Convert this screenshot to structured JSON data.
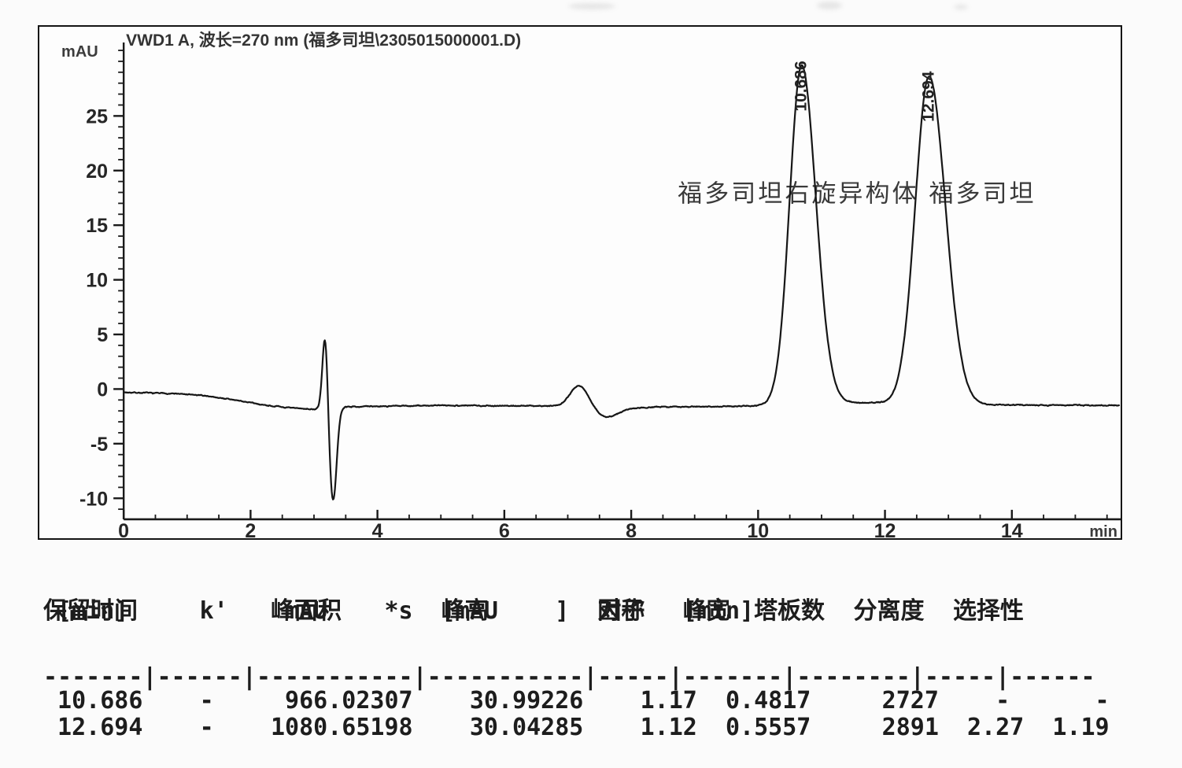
{
  "chart": {
    "title": "VWD1 A, 波长=270 nm (福多司坦\\2305015000001.D)",
    "y_unit": "mAU",
    "x_unit": "min"
  },
  "chart_data": {
    "type": "line",
    "title": "VWD1 A, 波长=270 nm (福多司坦\\2305015000001.D)",
    "xlabel": "min",
    "ylabel": "mAU",
    "xlim": [
      0,
      15.7
    ],
    "ylim": [
      -12,
      32
    ],
    "xticks": [
      0,
      2,
      4,
      6,
      8,
      10,
      12,
      14
    ],
    "yticks": [
      25,
      20,
      15,
      10,
      5,
      0,
      -5,
      -10
    ],
    "grid": false,
    "legend": false,
    "line_color": "#161616",
    "annotation": "福多司坦右旋异构体 福多司坦",
    "peak_names": [
      "福多司坦右旋异构体",
      "福多司坦"
    ],
    "peaks": [
      {
        "label": "10.686",
        "rt_min": 10.686,
        "height_mau": 30.99226,
        "width_min": 0.4817,
        "symmetry": 1.17
      },
      {
        "label": "12.694",
        "rt_min": 12.694,
        "height_mau": 30.04285,
        "width_min": 0.5557,
        "symmetry": 1.12
      }
    ],
    "baseline_anchors": [
      [
        0,
        -0.3
      ],
      [
        0.8,
        -0.42
      ],
      [
        1.3,
        -0.62
      ],
      [
        1.8,
        -1.05
      ],
      [
        2.2,
        -1.45
      ],
      [
        2.6,
        -1.72
      ],
      [
        3.0,
        -1.85
      ],
      [
        3.3,
        -1.75
      ],
      [
        3.5,
        -1.62
      ],
      [
        5.0,
        -1.5
      ],
      [
        6.8,
        -1.55
      ],
      [
        7.95,
        -1.72
      ],
      [
        8.6,
        -1.62
      ],
      [
        9.6,
        -1.58
      ],
      [
        10.3,
        -1.5
      ],
      [
        11.2,
        -1.25
      ],
      [
        11.9,
        -1.25
      ],
      [
        12.3,
        -1.35
      ],
      [
        13.2,
        -1.45
      ],
      [
        14.0,
        -1.45
      ],
      [
        15.7,
        -1.5
      ]
    ],
    "artifacts": [
      {
        "name": "injection-disturbance",
        "components": [
          {
            "mu": 3.175,
            "sigma": 0.042,
            "amp": 6.9
          },
          {
            "mu": 3.3,
            "sigma": 0.056,
            "amp": -8.5
          }
        ]
      },
      {
        "name": "baseline-wave",
        "components": [
          {
            "mu": 7.18,
            "sigma": 0.14,
            "amp": 1.95
          },
          {
            "mu": 7.62,
            "sigma": 0.17,
            "amp": -0.9
          }
        ]
      }
    ]
  },
  "report": {
    "columns": [
      {
        "title": "保留时间",
        "unit": "[min]"
      },
      {
        "title": "k'",
        "unit": ""
      },
      {
        "title": "峰面积",
        "unit": "mAU    *s"
      },
      {
        "title": "峰高",
        "unit": "[mAU    ]"
      },
      {
        "title": "对称",
        "unit": "因子"
      },
      {
        "title": "峰宽",
        "unit": "[min]"
      },
      {
        "title": "塔板数",
        "unit": ""
      },
      {
        "title": "分离度",
        "unit": ""
      },
      {
        "title": "选择性",
        "unit": ""
      }
    ],
    "rows": [
      [
        "10.686",
        "-",
        "966.02307",
        "30.99226",
        "1.17",
        "0.4817",
        "2727",
        "-",
        "-"
      ],
      [
        "12.694",
        "-",
        "1080.65198",
        "30.04285",
        "1.12",
        "0.5557",
        "2891",
        "2.27",
        "1.19"
      ]
    ],
    "separator_line": "-------|------|-----------|-----------|-----|-------|--------|-----|------",
    "row_lines": [
      " 10.686    -     966.02307    30.99226    1.17  0.4817     2727    -      -",
      " 12.694    -    1080.65198    30.04285    1.12  0.5557     2891  2.27  1.19"
    ]
  }
}
